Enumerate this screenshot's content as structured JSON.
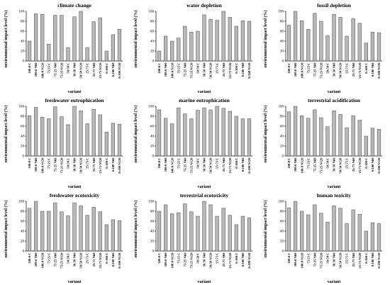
{
  "figure": {
    "y_axis_label": "environmental impact level (%)",
    "x_axis_label": "variant"
  },
  "chart_data": [
    {
      "type": "bar",
      "title": "climate change",
      "xlabel": "variant",
      "ylabel": "environmental impact level (%)",
      "ylim": [
        0,
        100
      ],
      "yticks": [
        0,
        20,
        40,
        60,
        80,
        100
      ],
      "categories": [
        "100:0 C",
        "100:0 N60",
        "100:0 N120",
        "75:25 C",
        "75:25 N60",
        "75:25 N120",
        "50:50 C",
        "50:50 N60",
        "50:50 N120",
        "25:75 C",
        "25:75 N60",
        "25:75 N120",
        "0:100 C",
        "0:100 N60",
        "0:100 N120"
      ],
      "values": [
        40,
        95,
        94,
        34,
        92,
        92,
        27,
        89,
        100,
        27,
        79,
        87,
        20,
        53,
        64
      ]
    },
    {
      "type": "bar",
      "title": "water depletion",
      "xlabel": "variant",
      "ylabel": "environmental impact level (%)",
      "ylim": [
        0,
        100
      ],
      "yticks": [
        0,
        20,
        40,
        60,
        80,
        100
      ],
      "categories": [
        "100:0 C",
        "100:0 N60",
        "100:0 N120",
        "75:25 C",
        "75:25 N60",
        "75:25 N120",
        "50:50 C",
        "50:50 N60",
        "50:50 N120",
        "25:75 C",
        "25:75 N60",
        "25:75 N120",
        "0:100 C",
        "0:100 N60",
        "0:100 N120"
      ],
      "values": [
        20,
        50,
        40,
        46,
        70,
        58,
        60,
        93,
        84,
        82,
        100,
        88,
        70,
        81,
        80
      ]
    },
    {
      "type": "bar",
      "title": "fossil depletion",
      "xlabel": "variant",
      "ylabel": "environmental impact level (%)",
      "ylim": [
        0,
        100
      ],
      "yticks": [
        0,
        20,
        40,
        60,
        80,
        100
      ],
      "categories": [
        "100:0 C",
        "100:0 N60",
        "100:0 N120",
        "75:25 C",
        "75:25 N60",
        "75:25 N120",
        "50:50 C",
        "50:50 N60",
        "50:50 N120",
        "25:75 C",
        "25:75 N60",
        "25:75 N120",
        "0:100 C",
        "0:100 N60",
        "0:100 N120"
      ],
      "values": [
        72,
        100,
        81,
        64,
        96,
        80,
        51,
        94,
        88,
        50,
        85,
        76,
        36,
        58,
        57
      ]
    },
    {
      "type": "bar",
      "title": "freshwater eutrophication",
      "xlabel": "variant",
      "ylabel": "environmental impact level (%)",
      "ylim": [
        0,
        100
      ],
      "yticks": [
        0,
        20,
        40,
        60,
        80,
        100
      ],
      "categories": [
        "100:0 C",
        "100:0 N60",
        "100:0 N120",
        "75:25 C",
        "75:25 N60",
        "75:25 N120",
        "50:50 C",
        "50:50 N60",
        "50:50 N120",
        "25:75 C",
        "25:75 N60",
        "25:75 N120",
        "0:100 C",
        "0:100 N60",
        "0:100 N120"
      ],
      "values": [
        81,
        98,
        78,
        75,
        99,
        79,
        63,
        100,
        91,
        65,
        94,
        83,
        48,
        66,
        64
      ]
    },
    {
      "type": "bar",
      "title": "marine eutrophication",
      "xlabel": "variant",
      "ylabel": "environmental impact level (%)",
      "ylim": [
        0,
        100
      ],
      "yticks": [
        0,
        20,
        40,
        60,
        80,
        100
      ],
      "categories": [
        "100:0 C",
        "100:0 N60",
        "100:0 N120",
        "75:25 C",
        "75:25 N60",
        "75:25 N120",
        "50:50 C",
        "50:50 N60",
        "50:50 N120",
        "25:75 C",
        "25:75 N60",
        "25:75 N120",
        "0:100 C",
        "0:100 N60",
        "0:100 N120"
      ],
      "values": [
        93,
        76,
        65,
        97,
        85,
        75,
        92,
        97,
        93,
        100,
        96,
        90,
        80,
        75,
        75
      ]
    },
    {
      "type": "bar",
      "title": "terrestrial acidification",
      "xlabel": "variant",
      "ylabel": "environmental impact level (%)",
      "ylim": [
        0,
        100
      ],
      "yticks": [
        0,
        20,
        40,
        60,
        80,
        100
      ],
      "categories": [
        "100:0 C",
        "100:0 N60",
        "100:0 N120",
        "75:25 C",
        "75:25 N60",
        "75:25 N120",
        "50:50 C",
        "50:50 N60",
        "50:50 N120",
        "25:75 C",
        "25:75 N60",
        "25:75 N120",
        "0:100 C",
        "0:100 N60",
        "0:100 N120"
      ],
      "values": [
        89,
        100,
        81,
        76,
        93,
        77,
        59,
        91,
        84,
        57,
        81,
        72,
        40,
        56,
        54
      ]
    },
    {
      "type": "bar",
      "title": "freshwater ecotoxicity",
      "xlabel": "variant",
      "ylabel": "environmental impact level (%)",
      "ylim": [
        0,
        100
      ],
      "yticks": [
        0,
        20,
        40,
        60,
        80,
        100
      ],
      "categories": [
        "100:0 C",
        "100:0 N60",
        "100:0 N120",
        "75:25 C",
        "75:25 N60",
        "75:25 N120",
        "50:50 C",
        "50:50 N60",
        "50:50 N120",
        "25:75 C",
        "25:75 N60",
        "25:75 N120",
        "0:100 C",
        "0:100 N60",
        "0:100 N120"
      ],
      "values": [
        86,
        100,
        80,
        80,
        97,
        79,
        71,
        97,
        91,
        72,
        88,
        79,
        53,
        63,
        61
      ]
    },
    {
      "type": "bar",
      "title": "terrestrial ecotoxicity",
      "xlabel": "variant",
      "ylabel": "environmental impact level (%)",
      "ylim": [
        0,
        100
      ],
      "yticks": [
        0,
        20,
        40,
        60,
        80,
        100
      ],
      "categories": [
        "100:0 C",
        "100:0 N60",
        "100:0 N120",
        "75:25 C",
        "75:25 N60",
        "75:25 N120",
        "50:50 C",
        "50:50 N60",
        "50:50 N120",
        "25:75 C",
        "25:75 N60",
        "25:75 N120",
        "0:100 C",
        "0:100 N60",
        "0:100 N120"
      ],
      "values": [
        80,
        93,
        75,
        77,
        95,
        79,
        70,
        100,
        93,
        70,
        86,
        72,
        53,
        70,
        67
      ]
    },
    {
      "type": "bar",
      "title": "human toxicity",
      "xlabel": "variant",
      "ylabel": "environmental impact level (%)",
      "ylim": [
        0,
        100
      ],
      "yticks": [
        0,
        20,
        40,
        60,
        80,
        100
      ],
      "categories": [
        "100:0 C",
        "100:0 N60",
        "100:0 N120",
        "75:25 C",
        "75:25 N60",
        "75:25 N120",
        "50:50 C",
        "50:50 N60",
        "50:50 N120",
        "25:75 C",
        "25:75 N60",
        "25:75 N120",
        "0:100 C",
        "0:100 N60",
        "0:100 N120"
      ],
      "values": [
        87,
        100,
        80,
        73,
        93,
        76,
        58,
        91,
        86,
        55,
        83,
        74,
        40,
        57,
        55
      ]
    }
  ],
  "colors": {
    "bar_fill": "#b8b8b8",
    "bar_stroke": "#444444",
    "axis": "#000000"
  }
}
